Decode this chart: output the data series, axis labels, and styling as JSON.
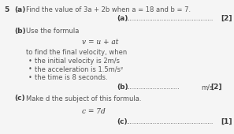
{
  "background_color": "#f5f5f5",
  "question_number": "5",
  "part_a_label": "(a)",
  "part_a_text": "Find the value of 3a + 2b when a = 18 and b = 7.",
  "part_a_answer_label": "(a)",
  "part_a_marks": "[2]",
  "part_b_label": "(b)",
  "part_b_text": "Use the formula",
  "part_b_formula": "v = u + at",
  "part_b_desc": "to find the final velocity, when",
  "bullet_1": "the initial velocity is 2m/s",
  "bullet_2": "the acceleration is 1.5m/s²",
  "bullet_3": "the time is 8 seconds.",
  "part_b_answer_label": "(b)",
  "part_b_unit": "m/s",
  "part_b_marks": "[2]",
  "part_c_label": "(c)",
  "part_c_text": "Make d the subject of this formula.",
  "part_c_formula": "c = 7d",
  "part_c_answer_label": "(c)",
  "part_c_marks": "[1]",
  "dot_line": ".................................................",
  "short_dot_line": "..............................",
  "font_size_q": 6.5,
  "font_size_main": 6.0,
  "font_size_formula": 6.5,
  "text_color": "#555555",
  "dark_color": "#3a3a3a",
  "bullet_color": "#555555"
}
